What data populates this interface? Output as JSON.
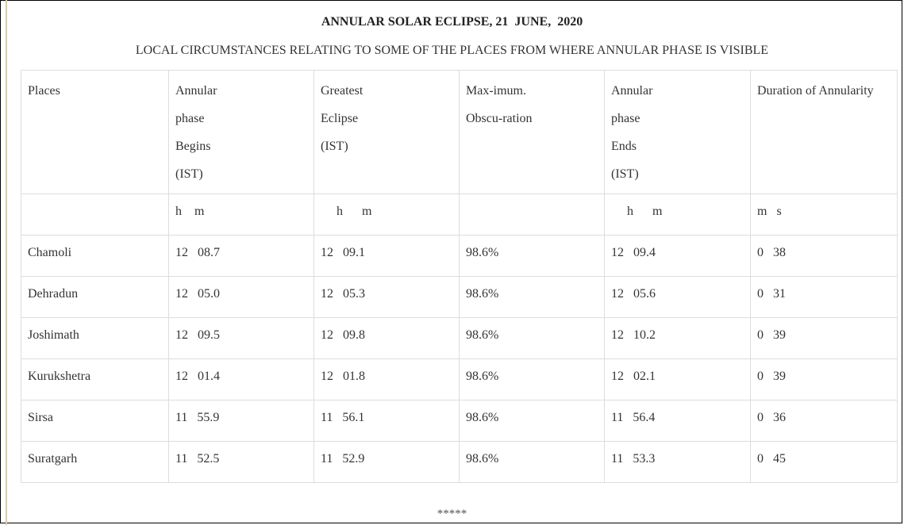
{
  "title": "ANNULAR SOLAR ECLIPSE, 21  JUNE,  2020",
  "subtitle": "LOCAL CIRCUMSTANCES RELATING TO SOME OF THE PLACES FROM WHERE ANNULAR PHASE IS VISIBLE",
  "table": {
    "headers": [
      "Places",
      "Annular\nphase\nBegins\n(IST)",
      "Greatest\nEclipse\n(IST)",
      "Max-imum.\nObscu-ration",
      "Annular\nphase\nEnds\n(IST)",
      "Duration of Annularity"
    ],
    "units": [
      "",
      "h    m",
      "     h      m",
      "",
      "     h      m",
      "m   s"
    ],
    "rows": [
      [
        "Chamoli",
        "12   08.7",
        "12   09.1",
        "98.6%",
        "12   09.4",
        "0   38"
      ],
      [
        "Dehradun",
        "12   05.0",
        "12   05.3",
        "98.6%",
        "12   05.6",
        "0   31"
      ],
      [
        "Joshimath",
        "12   09.5",
        "12   09.8",
        "98.6%",
        "12   10.2",
        "0   39"
      ],
      [
        "Kurukshetra",
        "12   01.4",
        "12   01.8",
        "98.6%",
        "12   02.1",
        "0   39"
      ],
      [
        "Sirsa",
        "11   55.9",
        "11   56.1",
        "98.6%",
        "11   56.4",
        "0   36"
      ],
      [
        "Suratgarh",
        "11   52.5",
        "11   52.9",
        "98.6%",
        "11   53.3",
        "0   45"
      ]
    ]
  },
  "footer": "*****"
}
